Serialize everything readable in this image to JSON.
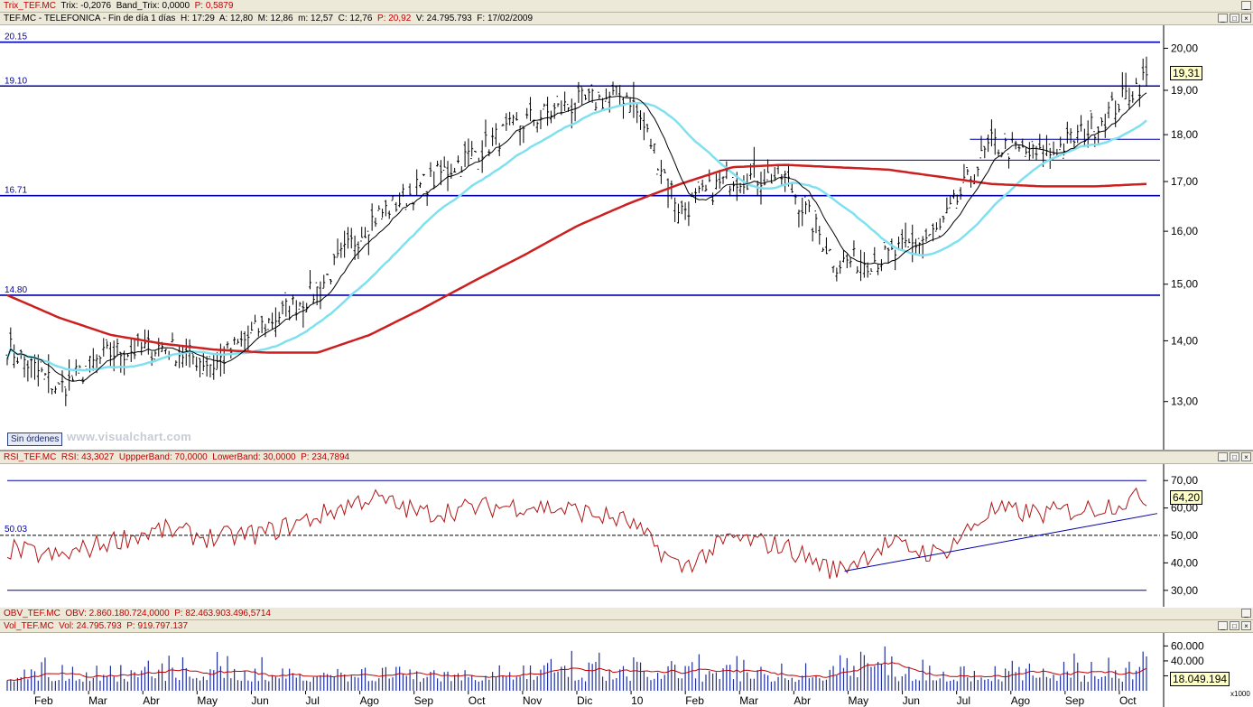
{
  "trix_bar": {
    "name": "Trix_TEF.MC",
    "trix": "Trix: -0,2076",
    "band": "Band_Trix: 0,0000",
    "p": "P: 0,5879"
  },
  "price_bar": {
    "ticker": "TEF.MC - TELEFONICA - Fin de día 1 días",
    "h": "H: 17:29",
    "a": "A: 12,80",
    "m": "M: 12,86",
    "mm": "m: 12,57",
    "c": "C: 12,76",
    "p": "P: 20,92",
    "v": "V: 24.795.793",
    "f": "F: 17/02/2009"
  },
  "rsi_bar": {
    "name": "RSI_TEF.MC",
    "rsi": "RSI: 43,3027",
    "upper": "UppperBand: 70,0000",
    "lower": "LowerBand: 30,0000",
    "p": "P: 234,7894"
  },
  "obv_bar": {
    "name": "OBV_TEF.MC",
    "obv": "OBV: 2.860.180.724,0000",
    "p": "P: 82.463.903.496,5714"
  },
  "vol_bar": {
    "name": "Vol_TEF.MC",
    "vol": "Vol: 24.795.793",
    "p": "P: 919.797.137"
  },
  "price_panel": {
    "no_orders": "Sin órdenes",
    "watermark": "www.visualchart.com",
    "last_value": "19,31",
    "hline_labels": [
      "20.15",
      "19.10",
      "16.71",
      "14.80"
    ]
  },
  "rsi_panel": {
    "last_value": "64,20",
    "level_label": "50.03"
  },
  "vol_panel": {
    "last_value": "18.049.194",
    "multiplier": "x1000"
  },
  "colors": {
    "price": "#000000",
    "ma_short": "#000000",
    "ma_mid": "#7fe0f0",
    "ma_long": "#cc1f1f",
    "hlines": "#0000a8",
    "rsi": "#b01515",
    "volume": "#1e2fa0",
    "vol_ma": "#c00000"
  },
  "icons": {
    "window_buttons": [
      "minimize-icon",
      "maximize-icon",
      "close-icon"
    ]
  },
  "chart_data": [
    {
      "type": "line",
      "name": "price",
      "ylim": [
        12.3,
        20.5
      ],
      "log_scale": true,
      "y_ticks": [
        "20,00",
        "19,00",
        "18,00",
        "17,00",
        "16,00",
        "15,00",
        "14,00",
        "13,00"
      ],
      "y_tick_values": [
        20,
        19,
        18,
        17,
        16,
        15,
        14,
        13
      ],
      "x_ticks": [
        "Feb",
        "Mar",
        "Abr",
        "May",
        "Jun",
        "Jul",
        "Ago",
        "Sep",
        "Oct",
        "Nov",
        "Dic",
        "10",
        "Feb",
        "Mar",
        "Abr",
        "May",
        "Jun",
        "Jul",
        "Ago",
        "Sep",
        "Oct"
      ],
      "hlines": [
        20.15,
        19.1,
        16.71,
        14.8
      ],
      "resistance_segments": [
        {
          "from": "Mar 2010",
          "to": "end",
          "y": 17.45
        },
        {
          "from": "Ago 2010",
          "to": "end",
          "y": 17.9
        }
      ],
      "close_monthly": [
        13.9,
        13.2,
        13.8,
        13.9,
        13.6,
        14.3,
        14.9,
        16.2,
        16.9,
        17.6,
        18.3,
        18.7,
        18.9,
        16.4,
        17.1,
        17.1,
        15.4,
        15.5,
        16.0,
        17.8,
        17.5,
        18.2,
        19.31
      ],
      "series": [
        {
          "name": "close",
          "values": [
            13.9,
            13.2,
            13.8,
            13.9,
            13.6,
            14.3,
            14.9,
            16.2,
            16.9,
            17.6,
            18.3,
            18.7,
            18.9,
            16.4,
            17.1,
            17.1,
            15.4,
            15.5,
            16.0,
            17.8,
            17.5,
            18.2,
            19.31
          ]
        },
        {
          "name": "ma_long",
          "values": [
            14.8,
            14.4,
            14.1,
            13.95,
            13.85,
            13.8,
            13.8,
            14.1,
            14.55,
            15.05,
            15.55,
            16.1,
            16.55,
            16.95,
            17.3,
            17.35,
            17.3,
            17.25,
            17.1,
            16.95,
            16.9,
            16.9,
            16.95
          ]
        }
      ]
    },
    {
      "type": "line",
      "name": "rsi",
      "ylim": [
        25,
        75
      ],
      "y_ticks": [
        "70,00",
        "60,00",
        "50,00",
        "40,00",
        "30,00"
      ],
      "y_tick_values": [
        70,
        60,
        50,
        40,
        30
      ],
      "bands": [
        70,
        30
      ],
      "level": 50.03,
      "trendline": [
        {
          "x": "May 2010",
          "y": 37
        },
        {
          "x": "end",
          "y": 58
        }
      ],
      "values_monthly": [
        45,
        42,
        48,
        52,
        49,
        51,
        57,
        64,
        58,
        60,
        61,
        59,
        55,
        38,
        49,
        46,
        37,
        47,
        43,
        59,
        58,
        60,
        64.2
      ]
    },
    {
      "type": "bar",
      "name": "volume",
      "ylim": [
        0,
        75000
      ],
      "y_ticks": [
        "60.000",
        "40.000",
        "20.000"
      ],
      "y_tick_values": [
        60000,
        40000,
        20000
      ],
      "last": 18049.194
    }
  ]
}
